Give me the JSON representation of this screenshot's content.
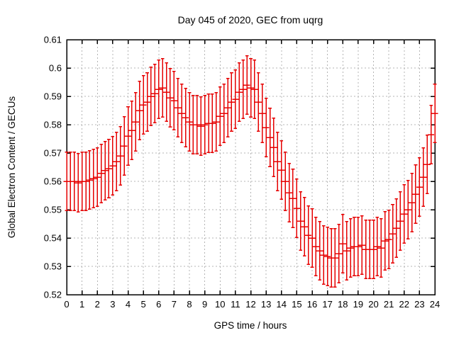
{
  "colors": {
    "series": "#e60000",
    "grid": "#b4b4b4",
    "axis": "#000000",
    "text": "#000000",
    "background": "#ffffff"
  },
  "chart_data": {
    "type": "line-errorbar",
    "title": "Day 045 of 2020, GEC from uqrg",
    "xlabel": "GPS time / hours",
    "ylabel": "Global Electron Content / GECUs",
    "xlim": [
      0,
      24
    ],
    "ylim": [
      0.52,
      0.61
    ],
    "grid": true,
    "legend": "none",
    "x_tick_labels": [
      "0",
      "1",
      "2",
      "3",
      "4",
      "5",
      "6",
      "7",
      "8",
      "9",
      "10",
      "11",
      "12",
      "13",
      "14",
      "15",
      "16",
      "17",
      "18",
      "19",
      "20",
      "21",
      "22",
      "23",
      "24"
    ],
    "x_ticks": [
      0,
      1,
      2,
      3,
      4,
      5,
      6,
      7,
      8,
      9,
      10,
      11,
      12,
      13,
      14,
      15,
      16,
      17,
      18,
      19,
      20,
      21,
      22,
      23,
      24
    ],
    "y_tick_labels": [
      "0.52",
      "0.53",
      "0.54",
      "0.55",
      "0.56",
      "0.57",
      "0.58",
      "0.59",
      "0.6",
      "0.61"
    ],
    "y_ticks": [
      0.52,
      0.53,
      0.54,
      0.55,
      0.56,
      0.57,
      0.58,
      0.59,
      0.6,
      0.61
    ],
    "x_step_hours": 0.25,
    "error_half_width": 0.0103,
    "x": [
      0,
      0.25,
      0.5,
      0.75,
      1,
      1.25,
      1.5,
      1.75,
      2,
      2.25,
      2.5,
      2.75,
      3,
      3.25,
      3.5,
      3.75,
      4,
      4.25,
      4.5,
      4.75,
      5,
      5.25,
      5.5,
      5.75,
      6,
      6.25,
      6.5,
      6.75,
      7,
      7.25,
      7.5,
      7.75,
      8,
      8.25,
      8.5,
      8.75,
      9,
      9.25,
      9.5,
      9.75,
      10,
      10.25,
      10.5,
      10.75,
      11,
      11.25,
      11.5,
      11.75,
      12,
      12.25,
      12.5,
      12.75,
      13,
      13.25,
      13.5,
      13.75,
      14,
      14.25,
      14.5,
      14.75,
      15,
      15.25,
      15.5,
      15.75,
      16,
      16.25,
      16.5,
      16.75,
      17,
      17.25,
      17.5,
      17.75,
      18,
      18.25,
      18.5,
      18.75,
      19,
      19.25,
      19.5,
      19.75,
      20,
      20.25,
      20.5,
      20.75,
      21,
      21.25,
      21.5,
      21.75,
      22,
      22.25,
      22.5,
      22.75,
      23,
      23.25,
      23.5,
      23.75,
      24
    ],
    "y": [
      0.56,
      0.56,
      0.56,
      0.5595,
      0.56,
      0.56,
      0.5605,
      0.561,
      0.5615,
      0.5628,
      0.5638,
      0.5645,
      0.5655,
      0.567,
      0.569,
      0.5725,
      0.576,
      0.578,
      0.581,
      0.585,
      0.587,
      0.588,
      0.59,
      0.591,
      0.5925,
      0.593,
      0.5915,
      0.5895,
      0.5885,
      0.586,
      0.584,
      0.5825,
      0.581,
      0.58,
      0.58,
      0.5795,
      0.58,
      0.5805,
      0.5805,
      0.581,
      0.583,
      0.584,
      0.586,
      0.588,
      0.589,
      0.5915,
      0.5925,
      0.594,
      0.593,
      0.5925,
      0.588,
      0.584,
      0.579,
      0.5755,
      0.572,
      0.567,
      0.564,
      0.56,
      0.556,
      0.554,
      0.5505,
      0.546,
      0.544,
      0.541,
      0.54,
      0.537,
      0.5355,
      0.534,
      0.5335,
      0.533,
      0.533,
      0.5345,
      0.538,
      0.5355,
      0.5365,
      0.537,
      0.537,
      0.5375,
      0.536,
      0.536,
      0.536,
      0.537,
      0.5365,
      0.539,
      0.5395,
      0.5415,
      0.5435,
      0.546,
      0.5485,
      0.55,
      0.5525,
      0.5555,
      0.558,
      0.5615,
      0.566,
      0.5765,
      0.584
    ]
  }
}
